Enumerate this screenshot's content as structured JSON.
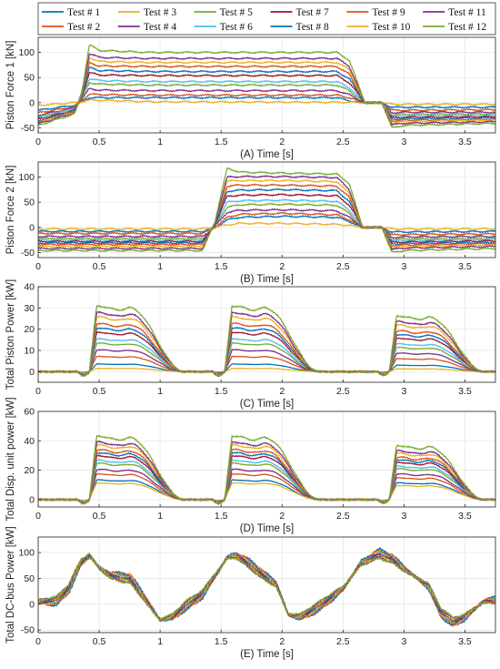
{
  "legend": {
    "entries": [
      {
        "label": "Test # 1",
        "color": "#0072BD"
      },
      {
        "label": "Test # 2",
        "color": "#D95319"
      },
      {
        "label": "Test # 3",
        "color": "#EDB120"
      },
      {
        "label": "Test # 4",
        "color": "#7E2F8E"
      },
      {
        "label": "Test # 5",
        "color": "#77AC30"
      },
      {
        "label": "Test # 6",
        "color": "#4DBEEE"
      },
      {
        "label": "Test # 7",
        "color": "#A2142F"
      },
      {
        "label": "Test # 8",
        "color": "#0072BD"
      },
      {
        "label": "Test # 9",
        "color": "#D95319"
      },
      {
        "label": "Test # 10",
        "color": "#EDB120"
      },
      {
        "label": "Test # 11",
        "color": "#7E2F8E"
      },
      {
        "label": "Test # 12",
        "color": "#77AC30"
      }
    ]
  },
  "chart_data": [
    {
      "type": "line",
      "xlabel": "(A) Time [s]",
      "ylabel": "Piston Force 1 [kN]",
      "xlim": [
        0,
        3.75
      ],
      "ylim": [
        -60,
        130
      ],
      "xticks": [
        0,
        0.5,
        1,
        1.5,
        2,
        2.5,
        3,
        3.5
      ],
      "xtick_labels": [
        "0",
        "0.5",
        "1",
        "1.5",
        "2",
        "2.5",
        "3",
        "3.5"
      ],
      "yticks": [
        -50,
        0,
        50,
        100
      ],
      "ytick_labels": [
        "-50",
        "0",
        "50",
        "100"
      ],
      "grid": true,
      "profile": {
        "x": [
          0,
          0.3,
          0.36,
          0.42,
          0.5,
          0.9,
          2.45,
          2.55,
          2.68,
          2.82,
          2.9,
          3.0,
          3.75
        ],
        "tests": [
          {
            "shape": [
              -15,
              -5,
              3,
              10,
              10,
              10,
              10,
              4,
              0,
              0,
              -9,
              -9,
              -9
            ]
          },
          {
            "shape": [
              -20,
              -8,
              5,
              17,
              16,
              15,
              15,
              10,
              0,
              0,
              -15,
              -15,
              -14
            ]
          },
          {
            "shape": [
              -5,
              0,
              2,
              5,
              5,
              2,
              1,
              1,
              0,
              0,
              -3,
              -3,
              -3
            ]
          },
          {
            "shape": [
              -25,
              -10,
              8,
              28,
              25,
              24,
              24,
              16,
              0,
              0,
              -20,
              -19,
              -19
            ]
          },
          {
            "shape": [
              -28,
              -12,
              10,
              40,
              37,
              35,
              35,
              24,
              0,
              0,
              -24,
              -23,
              -22
            ]
          },
          {
            "shape": [
              -30,
              -13,
              12,
              48,
              44,
              42,
              42,
              30,
              0,
              0,
              -27,
              -26,
              -25
            ]
          },
          {
            "shape": [
              -33,
              -15,
              14,
              60,
              55,
              54,
              54,
              40,
              0,
              0,
              -30,
              -29,
              -28
            ]
          },
          {
            "shape": [
              -36,
              -16,
              16,
              70,
              64,
              62,
              62,
              48,
              0,
              0,
              -33,
              -32,
              -30
            ]
          },
          {
            "shape": [
              -38,
              -18,
              18,
              80,
              73,
              72,
              72,
              57,
              0,
              0,
              -36,
              -35,
              -33
            ]
          },
          {
            "shape": [
              -40,
              -19,
              20,
              90,
              82,
              80,
              80,
              66,
              0,
              0,
              -40,
              -38,
              -35
            ]
          },
          {
            "shape": [
              -42,
              -20,
              22,
              98,
              90,
              88,
              88,
              73,
              0,
              0,
              -44,
              -41,
              -38
            ]
          },
          {
            "shape": [
              -45,
              -22,
              24,
              115,
              104,
              100,
              100,
              85,
              0,
              0,
              -50,
              -45,
              -41
            ]
          }
        ]
      }
    },
    {
      "type": "line",
      "xlabel": "(B) Time [s]",
      "ylabel": "Piston Force 2 [kN]",
      "xlim": [
        0,
        3.75
      ],
      "ylim": [
        -60,
        130
      ],
      "xticks": [
        0,
        0.5,
        1,
        1.5,
        2,
        2.5,
        3,
        3.5
      ],
      "xtick_labels": [
        "0",
        "0.5",
        "1",
        "1.5",
        "2",
        "2.5",
        "3",
        "3.5"
      ],
      "yticks": [
        -50,
        0,
        50,
        100
      ],
      "ytick_labels": [
        "-50",
        "0",
        "50",
        "100"
      ],
      "grid": true,
      "profile": {
        "x": [
          0,
          1.35,
          1.45,
          1.55,
          1.65,
          2.0,
          2.45,
          2.55,
          2.66,
          2.82,
          2.9,
          3.0,
          3.75
        ],
        "tests": [
          {
            "shape": [
              -8,
              -8,
              0,
              15,
              20,
              22,
              20,
              12,
              0,
              0,
              -9,
              -9,
              -8
            ]
          },
          {
            "shape": [
              -12,
              -12,
              0,
              20,
              26,
              28,
              25,
              15,
              0,
              0,
              -15,
              -14,
              -13
            ]
          },
          {
            "shape": [
              -3,
              -3,
              0,
              5,
              8,
              8,
              6,
              4,
              0,
              0,
              -3,
              -3,
              -3
            ]
          },
          {
            "shape": [
              -18,
              -18,
              2,
              30,
              34,
              35,
              33,
              20,
              0,
              0,
              -20,
              -19,
              -18
            ]
          },
          {
            "shape": [
              -22,
              -22,
              4,
              40,
              45,
              46,
              44,
              28,
              0,
              0,
              -24,
              -23,
              -22
            ]
          },
          {
            "shape": [
              -25,
              -25,
              5,
              50,
              53,
              54,
              52,
              35,
              0,
              0,
              -27,
              -26,
              -24
            ]
          },
          {
            "shape": [
              -28,
              -28,
              6,
              62,
              64,
              65,
              63,
              45,
              0,
              0,
              -30,
              -29,
              -27
            ]
          },
          {
            "shape": [
              -31,
              -31,
              7,
              72,
              74,
              75,
              73,
              52,
              0,
              0,
              -33,
              -32,
              -30
            ]
          },
          {
            "shape": [
              -34,
              -34,
              8,
              82,
              84,
              84,
              82,
              60,
              0,
              0,
              -36,
              -35,
              -32
            ]
          },
          {
            "shape": [
              -38,
              -38,
              9,
              92,
              93,
              93,
              91,
              68,
              0,
              0,
              -40,
              -38,
              -35
            ]
          },
          {
            "shape": [
              -42,
              -42,
              10,
              100,
              101,
              101,
              99,
              76,
              0,
              0,
              -44,
              -41,
              -38
            ]
          },
          {
            "shape": [
              -46,
              -46,
              12,
              118,
              110,
              108,
              106,
              88,
              0,
              0,
              -50,
              -46,
              -42
            ]
          }
        ]
      }
    },
    {
      "type": "line",
      "xlabel": "(C) Time [s]",
      "ylabel": "Total Piston Power [kW]",
      "xlim": [
        0,
        3.75
      ],
      "ylim": [
        -5,
        40
      ],
      "xticks": [
        0,
        0.5,
        1,
        1.5,
        2,
        2.5,
        3,
        3.5
      ],
      "xtick_labels": [
        "0",
        "0.5",
        "1",
        "1.5",
        "2",
        "2.5",
        "3",
        "3.5"
      ],
      "yticks": [
        0,
        10,
        20,
        30,
        40
      ],
      "ytick_labels": [
        "0",
        "10",
        "20",
        "30",
        "40"
      ],
      "grid": true,
      "peaks": [
        0.42,
        1.53,
        2.88
      ],
      "scale": [
        3.5,
        7,
        1.5,
        10,
        13,
        15,
        18,
        20,
        22,
        25,
        27,
        30
      ]
    },
    {
      "type": "line",
      "xlabel": "(D) Time [s]",
      "ylabel": "Total Disp. unit power [kW]",
      "xlim": [
        0,
        3.75
      ],
      "ylim": [
        -5,
        60
      ],
      "xticks": [
        0,
        0.5,
        1,
        1.5,
        2,
        2.5,
        3,
        3.5
      ],
      "xtick_labels": [
        "0",
        "0.5",
        "1",
        "1.5",
        "2",
        "2.5",
        "3",
        "3.5"
      ],
      "yticks": [
        0,
        20,
        40,
        60
      ],
      "ytick_labels": [
        "0",
        "20",
        "40",
        "60"
      ],
      "grid": true,
      "peaks": [
        0.42,
        1.53,
        2.88
      ],
      "scale": [
        13,
        17,
        11,
        20,
        24,
        26,
        29,
        31,
        33,
        36,
        38,
        42
      ]
    },
    {
      "type": "line",
      "xlabel": "(E) Time [s]",
      "ylabel": "Total DC-bus Power [kW]",
      "xlim": [
        0,
        3.75
      ],
      "ylim": [
        -55,
        130
      ],
      "xticks": [
        0,
        0.5,
        1,
        1.5,
        2,
        2.5,
        3,
        3.5
      ],
      "xtick_labels": [
        "0",
        "0.5",
        "1",
        "1.5",
        "2",
        "2.5",
        "3",
        "3.5"
      ],
      "yticks": [
        -50,
        0,
        50,
        100
      ],
      "ytick_labels": [
        "-50",
        "0",
        "50",
        "100"
      ],
      "grid": true,
      "profile": {
        "x": [
          0,
          0.15,
          0.25,
          0.35,
          0.42,
          0.5,
          0.6,
          0.75,
          0.85,
          0.95,
          1.0,
          1.1,
          1.2,
          1.35,
          1.45,
          1.55,
          1.62,
          1.75,
          1.85,
          1.95,
          2.05,
          2.15,
          2.3,
          2.5,
          2.65,
          2.8,
          2.9,
          3.05,
          3.2,
          3.3,
          3.4,
          3.5,
          3.65,
          3.75
        ],
        "base": [
          5,
          6,
          30,
          80,
          95,
          70,
          55,
          50,
          20,
          -15,
          -30,
          -25,
          -5,
          20,
          55,
          90,
          95,
          75,
          55,
          40,
          -20,
          -25,
          -5,
          30,
          80,
          98,
          88,
          60,
          35,
          -15,
          -35,
          -25,
          5,
          8
        ]
      }
    }
  ]
}
